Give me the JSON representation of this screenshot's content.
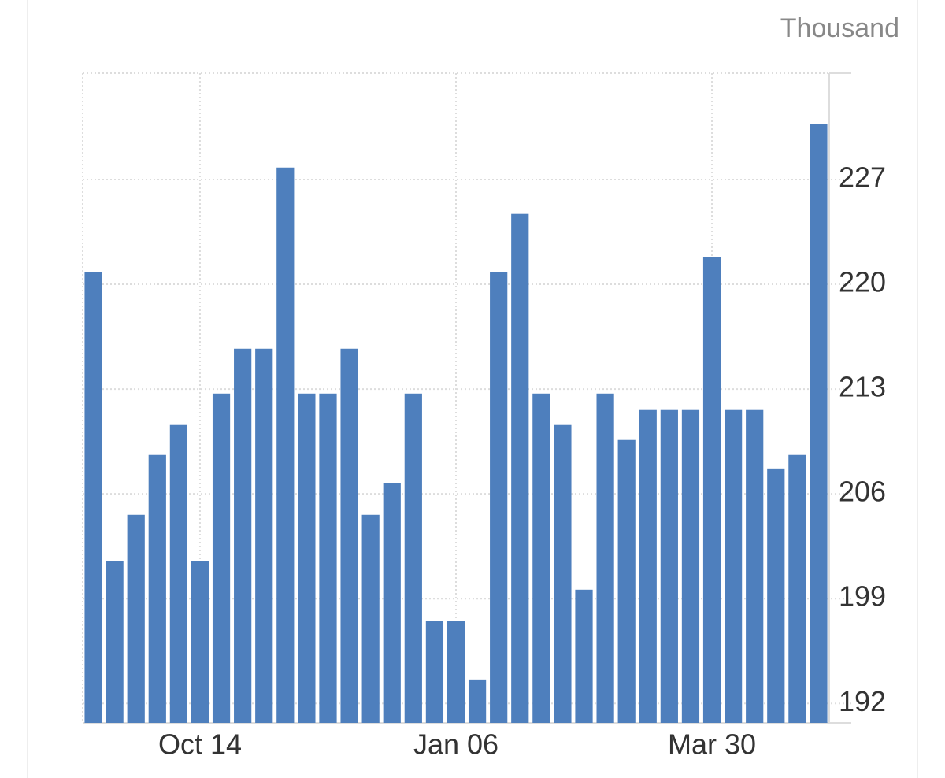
{
  "chart_data": {
    "type": "bar",
    "unit": "Thousand",
    "categories": [
      null,
      null,
      null,
      null,
      null,
      "Oct 14",
      null,
      null,
      null,
      null,
      null,
      null,
      null,
      null,
      null,
      null,
      null,
      "Jan 06",
      null,
      null,
      null,
      null,
      null,
      null,
      null,
      null,
      null,
      null,
      null,
      "Mar 30",
      null,
      null,
      null,
      null,
      null
    ],
    "values": [
      220.8,
      201.5,
      204.6,
      208.6,
      210.6,
      201.5,
      212.7,
      215.7,
      215.7,
      227.8,
      212.7,
      212.7,
      215.7,
      204.6,
      206.7,
      212.7,
      197.5,
      197.5,
      193.6,
      220.8,
      224.7,
      212.7,
      210.6,
      199.6,
      212.7,
      209.6,
      211.6,
      211.6,
      211.6,
      221.8,
      211.6,
      211.6,
      207.7,
      208.6,
      230.7
    ],
    "color": "#4e7fbd",
    "ylim": [
      190.7,
      234.1
    ],
    "yticks": [
      192,
      199,
      206,
      213,
      220,
      227
    ],
    "grid": true
  }
}
